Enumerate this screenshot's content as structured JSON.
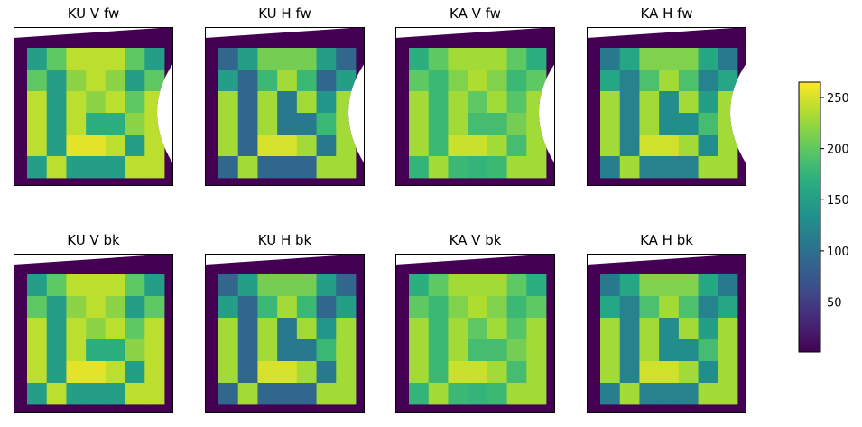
{
  "chart_data": {
    "type": "heatmap",
    "colormap": "viridis",
    "colorbar": {
      "range": [
        1,
        265
      ],
      "ticks": [
        50,
        100,
        150,
        200,
        250
      ],
      "tick_labels": [
        "50",
        "100",
        "150",
        "200",
        "250"
      ],
      "placement": "right"
    },
    "layout": {
      "rows": 2,
      "cols": 4
    },
    "grid": false,
    "axes_ticks": false,
    "panels": [
      {
        "title": "KU V fw",
        "pattern": "V",
        "cut": true
      },
      {
        "title": "KU H fw",
        "pattern": "H",
        "cut": true
      },
      {
        "title": "KA V fw",
        "pattern": "KAV",
        "cut": true
      },
      {
        "title": "KA H fw",
        "pattern": "KAH",
        "cut": true
      },
      {
        "title": "KU V bk",
        "pattern": "V",
        "cut": false
      },
      {
        "title": "KU H bk",
        "pattern": "H",
        "cut": false
      },
      {
        "title": "KA V bk",
        "pattern": "KAV",
        "cut": false
      },
      {
        "title": "KA H bk",
        "pattern": "KAH",
        "cut": false
      }
    ],
    "background_value": 1,
    "patterns": {
      "V": [
        [
          150,
          200,
          240,
          240,
          240,
          200,
          150
        ],
        [
          200,
          150,
          220,
          240,
          220,
          150,
          200
        ],
        [
          240,
          150,
          240,
          220,
          240,
          200,
          240
        ],
        [
          240,
          150,
          240,
          170,
          170,
          220,
          240
        ],
        [
          240,
          150,
          255,
          255,
          240,
          150,
          240
        ],
        [
          150,
          240,
          150,
          150,
          150,
          240,
          240
        ]
      ],
      "H": [
        [
          90,
          150,
          210,
          210,
          210,
          150,
          90
        ],
        [
          150,
          90,
          180,
          230,
          180,
          90,
          150
        ],
        [
          230,
          90,
          230,
          110,
          230,
          140,
          230
        ],
        [
          230,
          90,
          230,
          110,
          110,
          180,
          230
        ],
        [
          230,
          90,
          250,
          250,
          230,
          110,
          230
        ],
        [
          90,
          230,
          90,
          90,
          90,
          230,
          230
        ]
      ],
      "KAV": [
        [
          170,
          200,
          230,
          230,
          230,
          200,
          170
        ],
        [
          200,
          180,
          215,
          235,
          215,
          180,
          200
        ],
        [
          230,
          180,
          230,
          200,
          230,
          195,
          230
        ],
        [
          230,
          180,
          230,
          185,
          185,
          210,
          230
        ],
        [
          230,
          180,
          245,
          245,
          230,
          185,
          230
        ],
        [
          175,
          230,
          180,
          175,
          180,
          230,
          230
        ]
      ],
      "KAH": [
        [
          110,
          160,
          215,
          215,
          215,
          160,
          110
        ],
        [
          160,
          120,
          190,
          230,
          190,
          120,
          160
        ],
        [
          230,
          120,
          230,
          130,
          230,
          150,
          230
        ],
        [
          230,
          120,
          230,
          130,
          130,
          185,
          230
        ],
        [
          230,
          120,
          248,
          248,
          230,
          130,
          230
        ],
        [
          115,
          230,
          120,
          120,
          120,
          230,
          230
        ]
      ]
    }
  }
}
